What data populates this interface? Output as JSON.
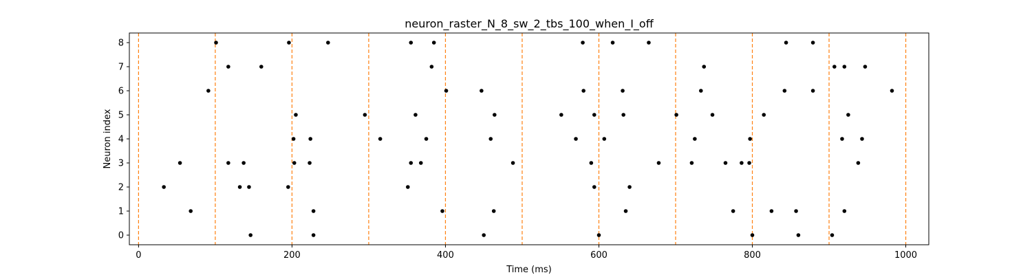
{
  "chart_data": {
    "type": "scatter",
    "title": "neuron_raster_N_8_sw_2_tbs_100_when_I_off",
    "xlabel": "Time (ms)",
    "ylabel": "Neuron index",
    "xlim": [
      -12,
      1030
    ],
    "ylim": [
      -0.4,
      8.4
    ],
    "xticks": [
      0,
      200,
      400,
      600,
      800,
      1000
    ],
    "yticks": [
      0,
      1,
      2,
      3,
      4,
      5,
      6,
      7,
      8
    ],
    "grid": false,
    "point_color": "#000000",
    "vline_color": "#ff7f0e",
    "vlines": [
      0,
      100,
      200,
      300,
      400,
      500,
      600,
      700,
      800,
      900,
      1000
    ],
    "spikes": [
      {
        "x": 146,
        "y": 0
      },
      {
        "x": 228,
        "y": 0
      },
      {
        "x": 450,
        "y": 0
      },
      {
        "x": 600,
        "y": 0
      },
      {
        "x": 800,
        "y": 0
      },
      {
        "x": 860,
        "y": 0
      },
      {
        "x": 904,
        "y": 0
      },
      {
        "x": 68,
        "y": 1
      },
      {
        "x": 228,
        "y": 1
      },
      {
        "x": 396,
        "y": 1
      },
      {
        "x": 463,
        "y": 1
      },
      {
        "x": 635,
        "y": 1
      },
      {
        "x": 775,
        "y": 1
      },
      {
        "x": 825,
        "y": 1
      },
      {
        "x": 857,
        "y": 1
      },
      {
        "x": 920,
        "y": 1
      },
      {
        "x": 33,
        "y": 2
      },
      {
        "x": 132,
        "y": 2
      },
      {
        "x": 144,
        "y": 2
      },
      {
        "x": 195,
        "y": 2
      },
      {
        "x": 351,
        "y": 2
      },
      {
        "x": 594,
        "y": 2
      },
      {
        "x": 640,
        "y": 2
      },
      {
        "x": 54,
        "y": 3
      },
      {
        "x": 117,
        "y": 3
      },
      {
        "x": 137,
        "y": 3
      },
      {
        "x": 203,
        "y": 3
      },
      {
        "x": 223,
        "y": 3
      },
      {
        "x": 355,
        "y": 3
      },
      {
        "x": 368,
        "y": 3
      },
      {
        "x": 488,
        "y": 3
      },
      {
        "x": 590,
        "y": 3
      },
      {
        "x": 678,
        "y": 3
      },
      {
        "x": 721,
        "y": 3
      },
      {
        "x": 765,
        "y": 3
      },
      {
        "x": 786,
        "y": 3
      },
      {
        "x": 796,
        "y": 3
      },
      {
        "x": 938,
        "y": 3
      },
      {
        "x": 202,
        "y": 4
      },
      {
        "x": 224,
        "y": 4
      },
      {
        "x": 315,
        "y": 4
      },
      {
        "x": 375,
        "y": 4
      },
      {
        "x": 459,
        "y": 4
      },
      {
        "x": 570,
        "y": 4
      },
      {
        "x": 607,
        "y": 4
      },
      {
        "x": 725,
        "y": 4
      },
      {
        "x": 797,
        "y": 4
      },
      {
        "x": 917,
        "y": 4
      },
      {
        "x": 943,
        "y": 4
      },
      {
        "x": 205,
        "y": 5
      },
      {
        "x": 295,
        "y": 5
      },
      {
        "x": 361,
        "y": 5
      },
      {
        "x": 464,
        "y": 5
      },
      {
        "x": 551,
        "y": 5
      },
      {
        "x": 594,
        "y": 5
      },
      {
        "x": 632,
        "y": 5
      },
      {
        "x": 701,
        "y": 5
      },
      {
        "x": 748,
        "y": 5
      },
      {
        "x": 815,
        "y": 5
      },
      {
        "x": 925,
        "y": 5
      },
      {
        "x": 91,
        "y": 6
      },
      {
        "x": 401,
        "y": 6
      },
      {
        "x": 447,
        "y": 6
      },
      {
        "x": 580,
        "y": 6
      },
      {
        "x": 631,
        "y": 6
      },
      {
        "x": 733,
        "y": 6
      },
      {
        "x": 842,
        "y": 6
      },
      {
        "x": 879,
        "y": 6
      },
      {
        "x": 982,
        "y": 6
      },
      {
        "x": 117,
        "y": 7
      },
      {
        "x": 160,
        "y": 7
      },
      {
        "x": 382,
        "y": 7
      },
      {
        "x": 737,
        "y": 7
      },
      {
        "x": 907,
        "y": 7
      },
      {
        "x": 920,
        "y": 7
      },
      {
        "x": 947,
        "y": 7
      },
      {
        "x": 101,
        "y": 8
      },
      {
        "x": 196,
        "y": 8
      },
      {
        "x": 247,
        "y": 8
      },
      {
        "x": 355,
        "y": 8
      },
      {
        "x": 385,
        "y": 8
      },
      {
        "x": 579,
        "y": 8
      },
      {
        "x": 618,
        "y": 8
      },
      {
        "x": 665,
        "y": 8
      },
      {
        "x": 844,
        "y": 8
      },
      {
        "x": 879,
        "y": 8
      }
    ]
  }
}
